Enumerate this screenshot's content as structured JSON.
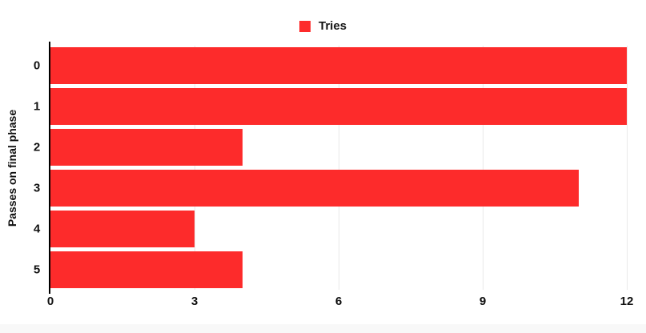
{
  "colors": {
    "bar": "#fd2b2b",
    "gridline": "#e9e9e9",
    "axis_line": "#000000",
    "label_text": "#111111",
    "bottom_strip": "#f8f8f8"
  },
  "legend": {
    "label": "Tries",
    "position": "top-center"
  },
  "chart_data": {
    "type": "bar",
    "orientation": "horizontal",
    "title": "",
    "xlabel": "",
    "ylabel": "Passes on final phase",
    "categories": [
      "0",
      "1",
      "2",
      "3",
      "4",
      "5"
    ],
    "series": [
      {
        "name": "Tries",
        "color": "#fd2b2b",
        "values": [
          12,
          12,
          4,
          11,
          3,
          4
        ]
      }
    ],
    "xlim": [
      0,
      12
    ],
    "x_tick_labels": [
      "0",
      "3",
      "6",
      "9",
      "12"
    ],
    "x_tick_values": [
      0,
      3,
      6,
      9,
      12
    ],
    "grid": "vertical gridlines only",
    "legend_position": "top"
  }
}
